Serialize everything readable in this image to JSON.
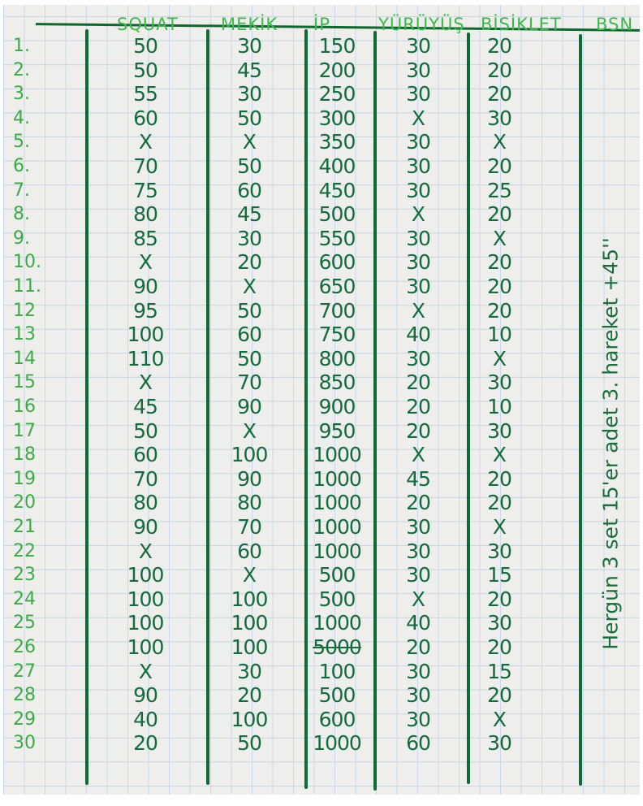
{
  "headers": {
    "squat": "SQUAT",
    "mekik": "MEKİK",
    "ip": "İP",
    "yuruyus": "YÜRÜYÜŞ",
    "bisiklet": "BİSİKLET",
    "bsn": "BSN"
  },
  "side_note": "Hergün 3 set 15'er adet 3. hareket +45''",
  "colors": {
    "ink_dark_green": "#166b3e",
    "ink_light_green": "#3daa45",
    "grid_blue": "#c9d8ea"
  },
  "rows": [
    {
      "n": "1.",
      "squat": "50",
      "mekik": "30",
      "ip": "150",
      "yuruyus": "30",
      "bisiklet": "20"
    },
    {
      "n": "2.",
      "squat": "50",
      "mekik": "45",
      "ip": "200",
      "yuruyus": "30",
      "bisiklet": "20"
    },
    {
      "n": "3.",
      "squat": "55",
      "mekik": "30",
      "ip": "250",
      "yuruyus": "30",
      "bisiklet": "20"
    },
    {
      "n": "4.",
      "squat": "60",
      "mekik": "50",
      "ip": "300",
      "yuruyus": "X",
      "bisiklet": "30"
    },
    {
      "n": "5.",
      "squat": "X",
      "mekik": "X",
      "ip": "350",
      "yuruyus": "30",
      "bisiklet": "X"
    },
    {
      "n": "6.",
      "squat": "70",
      "mekik": "50",
      "ip": "400",
      "yuruyus": "30",
      "bisiklet": "20"
    },
    {
      "n": "7.",
      "squat": "75",
      "mekik": "60",
      "ip": "450",
      "yuruyus": "30",
      "bisiklet": "25"
    },
    {
      "n": "8.",
      "squat": "80",
      "mekik": "45",
      "ip": "500",
      "yuruyus": "X",
      "bisiklet": "20"
    },
    {
      "n": "9.",
      "squat": "85",
      "mekik": "30",
      "ip": "550",
      "yuruyus": "30",
      "bisiklet": "X"
    },
    {
      "n": "10.",
      "squat": "X",
      "mekik": "20",
      "ip": "600",
      "yuruyus": "30",
      "bisiklet": "20"
    },
    {
      "n": "11.",
      "squat": "90",
      "mekik": "X",
      "ip": "650",
      "yuruyus": "30",
      "bisiklet": "20"
    },
    {
      "n": "12",
      "squat": "95",
      "mekik": "50",
      "ip": "700",
      "yuruyus": "X",
      "bisiklet": "20"
    },
    {
      "n": "13",
      "squat": "100",
      "mekik": "60",
      "ip": "750",
      "yuruyus": "40",
      "bisiklet": "10"
    },
    {
      "n": "14",
      "squat": "110",
      "mekik": "50",
      "ip": "800",
      "yuruyus": "30",
      "bisiklet": "X"
    },
    {
      "n": "15",
      "squat": "X",
      "mekik": "70",
      "ip": "850",
      "yuruyus": "20",
      "bisiklet": "30"
    },
    {
      "n": "16",
      "squat": "45",
      "mekik": "90",
      "ip": "900",
      "yuruyus": "20",
      "bisiklet": "10"
    },
    {
      "n": "17",
      "squat": "50",
      "mekik": "X",
      "ip": "950",
      "yuruyus": "20",
      "bisiklet": "30"
    },
    {
      "n": "18",
      "squat": "60",
      "mekik": "100",
      "ip": "1000",
      "yuruyus": "X",
      "bisiklet": "X"
    },
    {
      "n": "19",
      "squat": "70",
      "mekik": "90",
      "ip": "1000",
      "yuruyus": "45",
      "bisiklet": "20"
    },
    {
      "n": "20",
      "squat": "80",
      "mekik": "80",
      "ip": "1000",
      "yuruyus": "20",
      "bisiklet": "20"
    },
    {
      "n": "21",
      "squat": "90",
      "mekik": "70",
      "ip": "1000",
      "yuruyus": "30",
      "bisiklet": "X"
    },
    {
      "n": "22",
      "squat": "X",
      "mekik": "60",
      "ip": "1000",
      "yuruyus": "30",
      "bisiklet": "30"
    },
    {
      "n": "23",
      "squat": "100",
      "mekik": "X",
      "ip": "500",
      "yuruyus": "30",
      "bisiklet": "15"
    },
    {
      "n": "24",
      "squat": "100",
      "mekik": "100",
      "ip": "500",
      "yuruyus": "X",
      "bisiklet": "20"
    },
    {
      "n": "25",
      "squat": "100",
      "mekik": "100",
      "ip": "1000",
      "yuruyus": "40",
      "bisiklet": "30"
    },
    {
      "n": "26",
      "squat": "100",
      "mekik": "100",
      "ip": "5000",
      "ip_crossed": true,
      "yuruyus": "20",
      "bisiklet": "20"
    },
    {
      "n": "27",
      "squat": "X",
      "mekik": "30",
      "ip": "100",
      "yuruyus": "30",
      "bisiklet": "15"
    },
    {
      "n": "28",
      "squat": "90",
      "mekik": "20",
      "ip": "500",
      "yuruyus": "30",
      "bisiklet": "20"
    },
    {
      "n": "29",
      "squat": "40",
      "mekik": "100",
      "ip": "600",
      "yuruyus": "30",
      "bisiklet": "X"
    },
    {
      "n": "30",
      "squat": "20",
      "mekik": "50",
      "ip": "1000",
      "yuruyus": "60",
      "bisiklet": "30"
    }
  ]
}
